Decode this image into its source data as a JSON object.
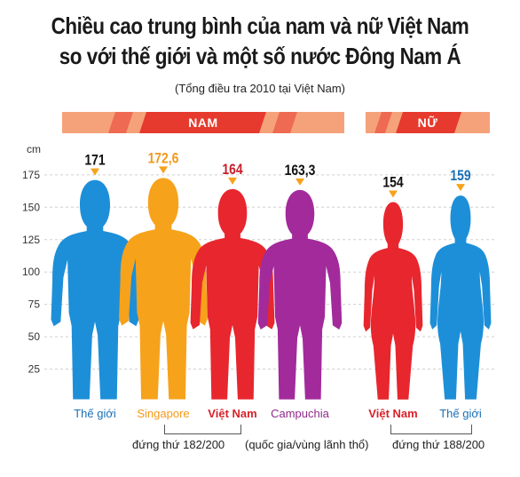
{
  "header": {
    "title_line1": "Chiều cao trung bình của nam và nữ Việt Nam",
    "title_line2": "so với thế giới và một số nước Đông Nam Á",
    "subtitle": "(Tổng điều tra 2010 tại Việt Nam)"
  },
  "bands": {
    "male_label": "NAM",
    "female_label": "NỮ",
    "light_color": "#f5a27a",
    "dark_color": "#e63a2e"
  },
  "notes": {
    "male_rank": "đứng thứ 182/200",
    "middle": "(quốc gia/vùng lãnh thổ)",
    "female_rank": "đứng thứ 188/200"
  },
  "chart_data": {
    "type": "bar",
    "yunit": "cm",
    "ylim": [
      0,
      175
    ],
    "yticks": [
      25,
      50,
      75,
      100,
      125,
      150,
      175
    ],
    "grid": true,
    "categories": [
      "Thế giới",
      "Singapore",
      "Việt Nam",
      "Campuchia",
      "Việt Nam",
      "Thế giới"
    ],
    "groups": [
      "NAM",
      "NAM",
      "NAM",
      "NAM",
      "NỮ",
      "NỮ"
    ],
    "values": [
      171,
      172.6,
      164,
      163.3,
      154,
      159
    ],
    "value_labels": [
      "171",
      "172,6",
      "164",
      "163,3",
      "154",
      "159"
    ],
    "colors": [
      "#1d8fd8",
      "#f7a21b",
      "#e8262e",
      "#a22a9b",
      "#e8262e",
      "#1d8fd8"
    ],
    "label_colors": [
      "#1a6fb5",
      "#f29a1a",
      "#d8222a",
      "#8f2a8a",
      "#d8222a",
      "#1a6fb5"
    ],
    "value_label_colors": [
      "#111111",
      "#f29a1a",
      "#c81e2a",
      "#111111",
      "#111111",
      "#1a6fb5"
    ],
    "genders": [
      "male",
      "male",
      "male",
      "male",
      "female",
      "female"
    ],
    "highlight": [
      false,
      false,
      true,
      false,
      true,
      false
    ]
  }
}
